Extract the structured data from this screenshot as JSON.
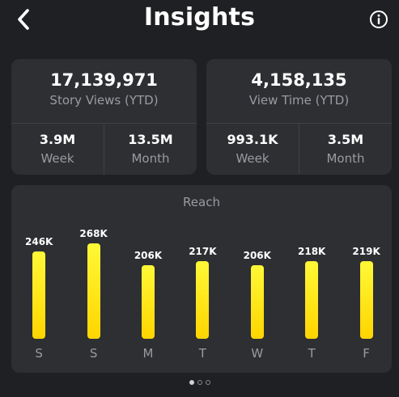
{
  "header": {
    "title": "Insights"
  },
  "stats": [
    {
      "value": "17,139,971",
      "label": "Story Views (YTD)",
      "cells": [
        {
          "value": "3.9M",
          "label": "Week"
        },
        {
          "value": "13.5M",
          "label": "Month"
        }
      ]
    },
    {
      "value": "4,158,135",
      "label": "View Time (YTD)",
      "cells": [
        {
          "value": "993.1K",
          "label": "Week"
        },
        {
          "value": "3.5M",
          "label": "Month"
        }
      ]
    }
  ],
  "reach": {
    "title": "Reach",
    "chart_data": {
      "type": "bar",
      "title": "Reach",
      "categories": [
        "S",
        "S",
        "M",
        "T",
        "W",
        "T",
        "F"
      ],
      "values": [
        246000,
        268000,
        206000,
        217000,
        206000,
        218000,
        219000
      ],
      "value_labels": [
        "246K",
        "268K",
        "206K",
        "217K",
        "206K",
        "218K",
        "219K"
      ],
      "bar_color": "#ffd500"
    }
  },
  "pager": {
    "pages": 3,
    "active": 0
  },
  "colors": {
    "background": "#1f2023",
    "card": "#2e2f33",
    "accent": "#ffd500",
    "muted": "#9a9ba0"
  }
}
